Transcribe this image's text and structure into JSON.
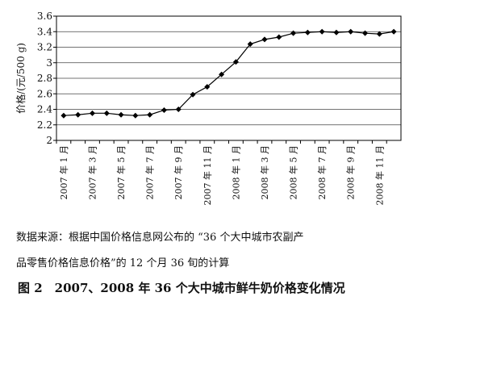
{
  "chart_data": {
    "type": "line",
    "title": "图 2　2007、2008 年 36 个大中城市鲜牛奶价格变化情况",
    "y_label": "价格/(元/500 g)",
    "source": [
      "数据来源：根据中国价格信息网公布的 “36 个大中城市农副产",
      "品零售价格信息价格”的 12 个月 36 旬的计算"
    ],
    "categories": [
      "2007 年 1 月",
      null,
      "2007 年 3 月",
      null,
      "2007 年 5 月",
      null,
      "2007 年 7 月",
      null,
      "2007 年 9 月",
      null,
      "2007 年 11 月",
      null,
      "2008 年 1 月",
      null,
      "2008 年 3 月",
      null,
      "2008 年 5 月",
      null,
      "2008 年 7 月",
      null,
      "2008 年 9 月",
      null,
      "2008 年 11 月",
      null
    ],
    "values": [
      2.32,
      2.33,
      2.35,
      2.35,
      2.33,
      2.32,
      2.33,
      2.39,
      2.4,
      2.59,
      2.69,
      2.85,
      3.01,
      3.24,
      3.3,
      3.33,
      3.38,
      3.39,
      3.4,
      3.39,
      3.4,
      3.38,
      3.37,
      3.4
    ],
    "color": "#000000",
    "ylim": [
      2,
      3.6
    ],
    "yticks": [
      2,
      2.2,
      2.4,
      2.6,
      2.8,
      3,
      3.2,
      3.4,
      3.6
    ],
    "grid": true
  }
}
